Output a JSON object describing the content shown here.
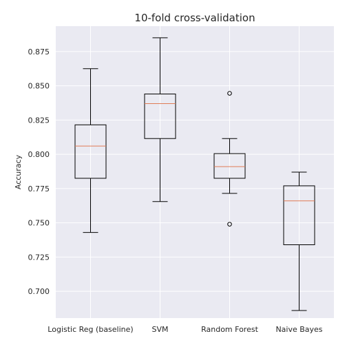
{
  "chart_data": {
    "type": "boxplot",
    "title": "10-fold cross-validation",
    "xlabel": "",
    "ylabel": "Accuracy",
    "categories": [
      "Logistic Reg (baseline)",
      "SVM",
      "Random Forest",
      "Naive Bayes"
    ],
    "boxes": [
      {
        "name": "Logistic Reg (baseline)",
        "whisker_low": 0.743,
        "q1": 0.7825,
        "median": 0.806,
        "q3": 0.8215,
        "whisker_high": 0.8625,
        "outliers": []
      },
      {
        "name": "SVM",
        "whisker_low": 0.7655,
        "q1": 0.8115,
        "median": 0.837,
        "q3": 0.844,
        "whisker_high": 0.885,
        "outliers": []
      },
      {
        "name": "Random Forest",
        "whisker_low": 0.7715,
        "q1": 0.7825,
        "median": 0.791,
        "q3": 0.8005,
        "whisker_high": 0.8115,
        "outliers": [
          0.8445,
          0.749
        ]
      },
      {
        "name": "Naive Bayes",
        "whisker_low": 0.686,
        "q1": 0.734,
        "median": 0.766,
        "q3": 0.777,
        "whisker_high": 0.787,
        "outliers": []
      }
    ],
    "yticks": [
      0.7,
      0.725,
      0.75,
      0.775,
      0.8,
      0.825,
      0.85,
      0.875
    ],
    "ytick_labels": [
      "0.700",
      "0.725",
      "0.750",
      "0.775",
      "0.800",
      "0.825",
      "0.850",
      "0.875"
    ],
    "ylim": [
      0.6805,
      0.8935
    ],
    "grid": true,
    "colors": {
      "plot_background": "#eaeaf2",
      "grid": "#ffffff",
      "box": "#000000",
      "median": "#e07b54",
      "text": "#262626"
    }
  }
}
